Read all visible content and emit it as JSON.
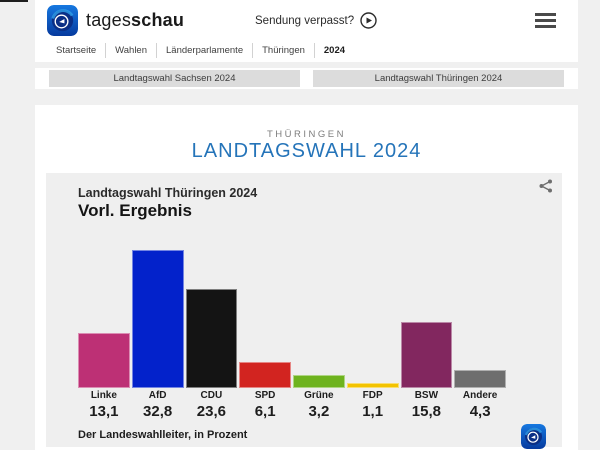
{
  "header": {
    "brand": {
      "prefix": "tages",
      "suffix": "schau"
    },
    "sendung_verpasst": "Sendung verpasst?",
    "breadcrumb": [
      "Startseite",
      "Wahlen",
      "Länderparlamente",
      "Thüringen",
      "2024"
    ]
  },
  "election_nav": {
    "buttons": [
      "Landtagswahl Sachsen 2024",
      "Landtagswahl Thüringen 2024"
    ]
  },
  "main": {
    "kicker": "THÜRINGEN",
    "title": "LANDTAGSWAHL 2024"
  },
  "chart_data": {
    "type": "bar",
    "title": "Landtagswahl Thüringen 2024",
    "subtitle": "Vorl. Ergebnis",
    "source": "Der Landeswahlleiter, in Prozent",
    "categories": [
      "Linke",
      "AfD",
      "CDU",
      "SPD",
      "Grüne",
      "FDP",
      "BSW",
      "Andere"
    ],
    "values": [
      13.1,
      32.8,
      23.6,
      6.1,
      3.2,
      1.1,
      15.8,
      4.3
    ],
    "value_labels": [
      "13,1",
      "32,8",
      "23,6",
      "6,1",
      "3,2",
      "1,1",
      "15,8",
      "4,3"
    ],
    "colors": [
      "#bd3075",
      "#0322cb",
      "#141414",
      "#d22420",
      "#6eb31e",
      "#f3c300",
      "#82275f",
      "#6e6e6e"
    ],
    "ylim": [
      0,
      32.8
    ],
    "grid": false,
    "legend": "none",
    "accent_blue": "#2574b9"
  }
}
